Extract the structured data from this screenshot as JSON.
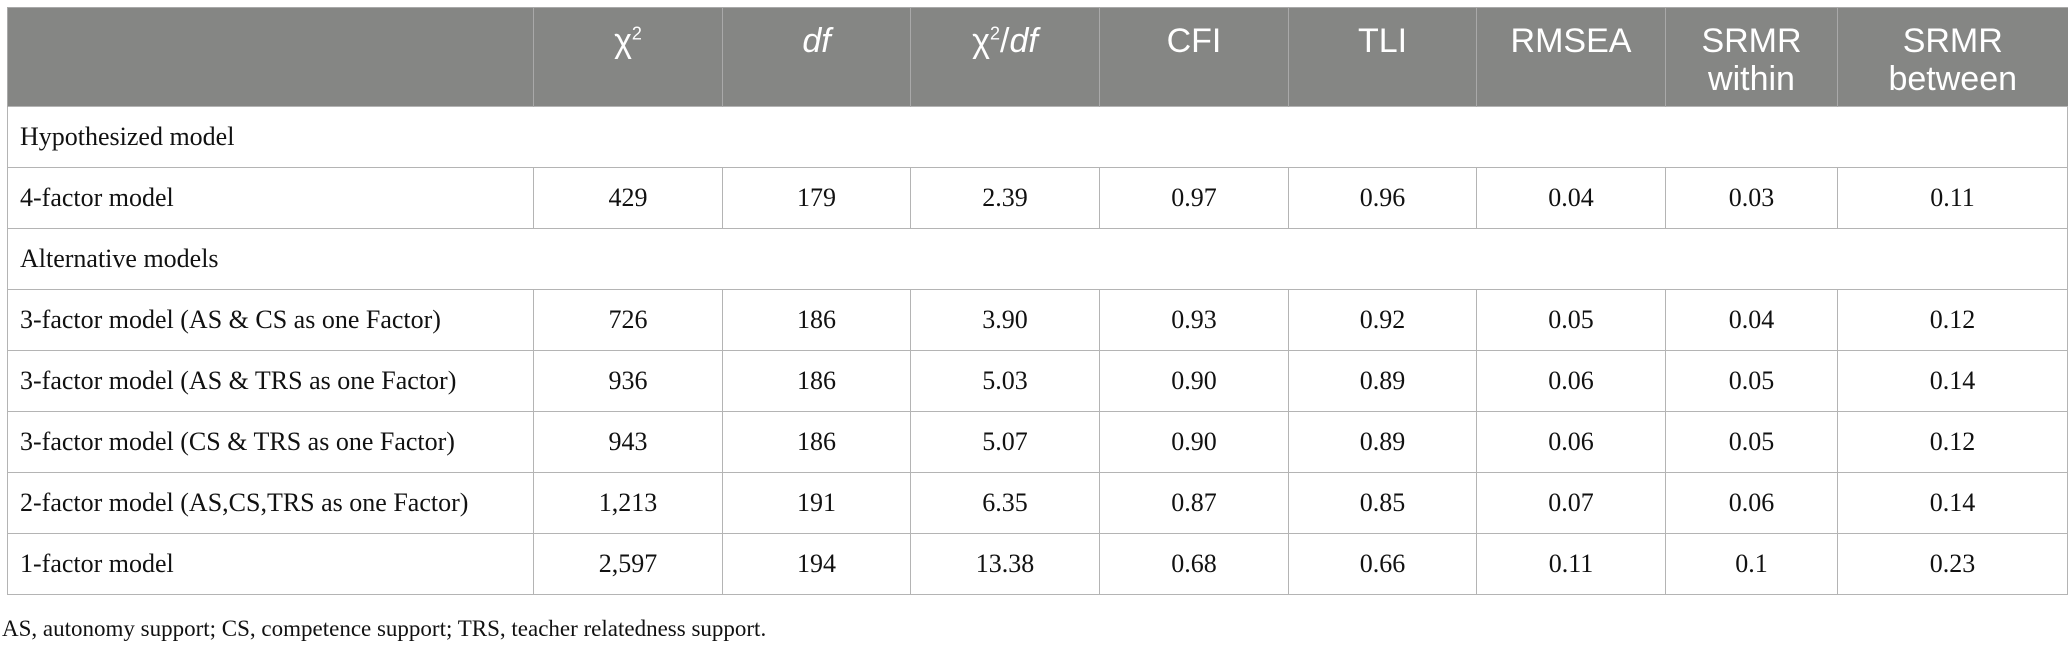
{
  "table": {
    "headers": {
      "chi2": "χ",
      "chi2_sup": "2",
      "df": "df",
      "ratio_chi": "χ",
      "ratio_sup": "2",
      "ratio_slash": "/",
      "ratio_df": "df",
      "cfi": "CFI",
      "tli": "TLI",
      "rmsea": "RMSEA",
      "srmr_within": "SRMR within",
      "srmr_between": "SRMR between"
    },
    "sections": {
      "hypothesized": "Hypothesized model",
      "alternative": "Alternative models"
    },
    "rows": [
      {
        "label": "4-factor model",
        "chi2": "429",
        "df": "179",
        "ratio": "2.39",
        "cfi": "0.97",
        "tli": "0.96",
        "rmsea": "0.04",
        "srmr_within": "0.03",
        "srmr_between": "0.11"
      },
      {
        "label": "3-factor model (AS & CS as one Factor)",
        "chi2": "726",
        "df": "186",
        "ratio": "3.90",
        "cfi": "0.93",
        "tli": "0.92",
        "rmsea": "0.05",
        "srmr_within": "0.04",
        "srmr_between": "0.12"
      },
      {
        "label": "3-factor model (AS & TRS as one Factor)",
        "chi2": "936",
        "df": "186",
        "ratio": "5.03",
        "cfi": "0.90",
        "tli": "0.89",
        "rmsea": "0.06",
        "srmr_within": "0.05",
        "srmr_between": "0.14"
      },
      {
        "label": "3-factor model (CS & TRS as one Factor)",
        "chi2": "943",
        "df": "186",
        "ratio": "5.07",
        "cfi": "0.90",
        "tli": "0.89",
        "rmsea": "0.06",
        "srmr_within": "0.05",
        "srmr_between": "0.12"
      },
      {
        "label": "2-factor model (AS,CS,TRS as one Factor)",
        "chi2": "1,213",
        "df": "191",
        "ratio": "6.35",
        "cfi": "0.87",
        "tli": "0.85",
        "rmsea": "0.07",
        "srmr_within": "0.06",
        "srmr_between": "0.14"
      },
      {
        "label": "1-factor model",
        "chi2": "2,597",
        "df": "194",
        "ratio": "13.38",
        "cfi": "0.68",
        "tli": "0.66",
        "rmsea": "0.11",
        "srmr_within": "0.1",
        "srmr_between": "0.23"
      }
    ],
    "footnote": "AS, autonomy support; CS, competence support; TRS, teacher relatedness support."
  }
}
